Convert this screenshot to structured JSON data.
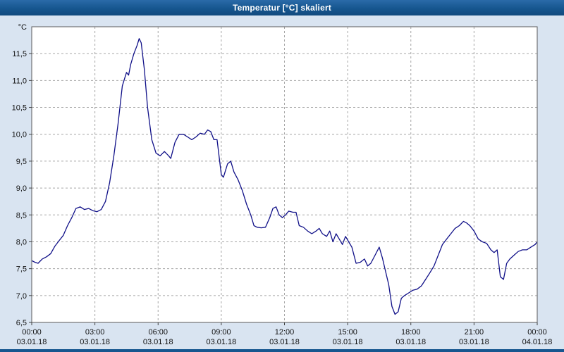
{
  "window": {
    "title": "Temperatur [°C] skaliert"
  },
  "colors": {
    "titlebar": "#16568f",
    "background": "#d9e4f1",
    "plot_background": "#ffffff",
    "plot_border": "#5a5a5a",
    "gridline": "#a6a6a6",
    "line_color": "#101088",
    "tick_color": "#404040"
  },
  "chart_data": {
    "type": "line",
    "title": "Temperatur [°C] skaliert",
    "ylabel": "°C",
    "xlabel": "",
    "legend": "none",
    "grid": "dashed",
    "ylim": [
      6.5,
      12.0
    ],
    "xlim_hours": [
      0,
      24
    ],
    "y_ticks": [
      6.5,
      7.0,
      7.5,
      8.0,
      8.5,
      9.0,
      9.5,
      10.0,
      10.5,
      11.0,
      11.5
    ],
    "y_tick_labels": [
      "6,5",
      "7,0",
      "7,5",
      "8,0",
      "8,5",
      "9,0",
      "9,5",
      "10,0",
      "10,5",
      "11,0",
      "11,5"
    ],
    "x_ticks_hours": [
      0,
      3,
      6,
      9,
      12,
      15,
      18,
      21,
      24
    ],
    "x_tick_times": [
      "00:00",
      "03:00",
      "06:00",
      "09:00",
      "12:00",
      "15:00",
      "18:00",
      "21:00",
      "00:00"
    ],
    "x_tick_dates": [
      "03.01.18",
      "03.01.18",
      "03.01.18",
      "03.01.18",
      "03.01.18",
      "03.01.18",
      "03.01.18",
      "03.01.18",
      "04.01.18"
    ],
    "series_name": "Temperatur",
    "x_hours": [
      0,
      0.15,
      0.3,
      0.5,
      0.7,
      0.9,
      1.1,
      1.3,
      1.5,
      1.7,
      1.9,
      2.1,
      2.3,
      2.5,
      2.7,
      2.9,
      3.1,
      3.3,
      3.5,
      3.7,
      3.9,
      4.1,
      4.3,
      4.5,
      4.6,
      4.7,
      4.85,
      5.0,
      5.1,
      5.2,
      5.35,
      5.5,
      5.7,
      5.9,
      6.1,
      6.3,
      6.5,
      6.6,
      6.8,
      7.0,
      7.2,
      7.4,
      7.6,
      7.8,
      8.0,
      8.2,
      8.35,
      8.5,
      8.65,
      8.8,
      9.0,
      9.1,
      9.3,
      9.45,
      9.6,
      9.8,
      10.0,
      10.2,
      10.4,
      10.55,
      10.7,
      10.9,
      11.1,
      11.3,
      11.45,
      11.6,
      11.75,
      11.9,
      12.05,
      12.2,
      12.4,
      12.55,
      12.7,
      12.9,
      13.1,
      13.3,
      13.5,
      13.65,
      13.8,
      14.0,
      14.15,
      14.3,
      14.45,
      14.6,
      14.75,
      14.9,
      15.05,
      15.2,
      15.4,
      15.6,
      15.8,
      15.95,
      16.1,
      16.3,
      16.5,
      16.65,
      16.8,
      16.95,
      17.1,
      17.25,
      17.4,
      17.55,
      17.7,
      17.9,
      18.1,
      18.3,
      18.5,
      18.7,
      18.9,
      19.1,
      19.3,
      19.5,
      19.7,
      19.9,
      20.1,
      20.3,
      20.5,
      20.65,
      20.8,
      21.0,
      21.2,
      21.4,
      21.6,
      21.8,
      21.95,
      22.1,
      22.25,
      22.4,
      22.55,
      22.7,
      22.9,
      23.1,
      23.3,
      23.5,
      23.7,
      23.9,
      24.0
    ],
    "values": [
      7.65,
      7.62,
      7.6,
      7.68,
      7.72,
      7.78,
      7.92,
      8.02,
      8.12,
      8.3,
      8.45,
      8.62,
      8.65,
      8.6,
      8.62,
      8.58,
      8.56,
      8.6,
      8.75,
      9.1,
      9.6,
      10.2,
      10.9,
      11.15,
      11.1,
      11.3,
      11.5,
      11.65,
      11.78,
      11.7,
      11.2,
      10.5,
      9.9,
      9.65,
      9.6,
      9.68,
      9.6,
      9.55,
      9.85,
      10.0,
      10.0,
      9.95,
      9.9,
      9.95,
      10.02,
      10.0,
      10.08,
      10.05,
      9.9,
      9.9,
      9.25,
      9.2,
      9.45,
      9.5,
      9.3,
      9.15,
      8.95,
      8.7,
      8.5,
      8.3,
      8.27,
      8.26,
      8.27,
      8.45,
      8.62,
      8.65,
      8.5,
      8.45,
      8.5,
      8.57,
      8.55,
      8.55,
      8.3,
      8.27,
      8.2,
      8.15,
      8.2,
      8.25,
      8.15,
      8.1,
      8.2,
      8.0,
      8.15,
      8.05,
      7.95,
      8.1,
      8.0,
      7.9,
      7.6,
      7.62,
      7.68,
      7.55,
      7.6,
      7.75,
      7.9,
      7.7,
      7.45,
      7.2,
      6.8,
      6.65,
      6.7,
      6.95,
      7.0,
      7.05,
      7.1,
      7.12,
      7.18,
      7.3,
      7.42,
      7.55,
      7.75,
      7.95,
      8.05,
      8.15,
      8.25,
      8.3,
      8.38,
      8.35,
      8.3,
      8.2,
      8.05,
      8.0,
      7.97,
      7.85,
      7.8,
      7.85,
      7.35,
      7.3,
      7.6,
      7.68,
      7.75,
      7.82,
      7.85,
      7.85,
      7.9,
      7.95,
      8.0
    ]
  }
}
